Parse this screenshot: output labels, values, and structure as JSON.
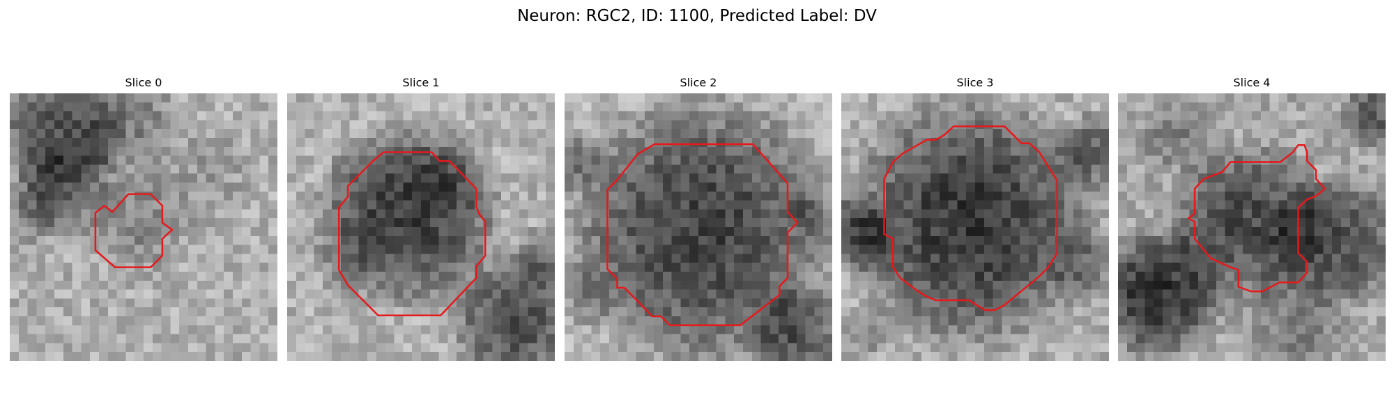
{
  "figure": {
    "title": "Neuron: RGC2, ID: 1100, Predicted Label: DV",
    "contour_color": "#e41a1c",
    "colormap": "grayscale",
    "slices": [
      {
        "title": "Slice 0"
      },
      {
        "title": "Slice 1"
      },
      {
        "title": "Slice 2"
      },
      {
        "title": "Slice 3"
      },
      {
        "title": "Slice 4"
      }
    ]
  }
}
